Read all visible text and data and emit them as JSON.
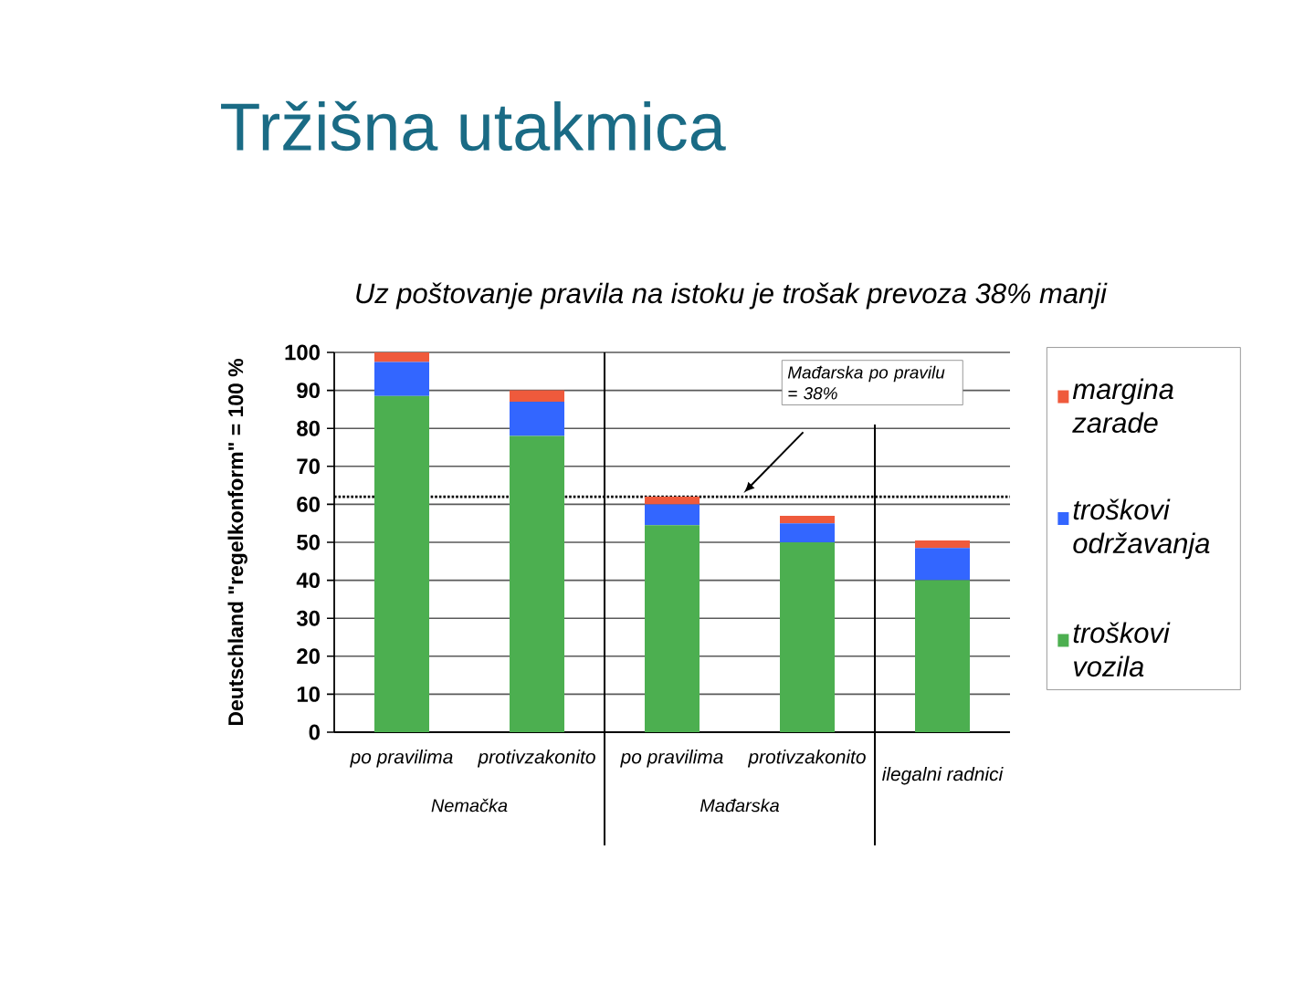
{
  "chart_data": {
    "type": "bar",
    "title": "Tržišna utakmica",
    "subtitle": "Uz poštovanje pravila na istoku je trošak prevoza 38% manji",
    "ylabel": "Deutschland \"regelkonform\" = 100 %",
    "categories": [
      "po pravilima",
      "protivzakonito",
      "po pravilima",
      "protivzakonito",
      "ilegalni radnici"
    ],
    "stacked": true,
    "series": [
      {
        "name": "troškovi vozila",
        "color": "#4caf50",
        "values": [
          88.5,
          78,
          54.5,
          50,
          40
        ]
      },
      {
        "name": "troškovi održavanja",
        "color": "#3366ff",
        "values": [
          9,
          9,
          5.5,
          5,
          8.5
        ]
      },
      {
        "name": "margina zarade",
        "color": "#ef5a3c",
        "values": [
          2.5,
          3,
          2,
          2,
          2
        ]
      }
    ],
    "ylim": [
      0,
      100
    ],
    "yticks": [
      0,
      10,
      20,
      30,
      40,
      50,
      60,
      70,
      80,
      90,
      100
    ],
    "grid": "y",
    "legend": "right",
    "ref_lines": [
      {
        "axis": "y",
        "value": 62,
        "line_style": "dotted",
        "color": "#000000"
      }
    ],
    "annotations": [
      "Nemačka",
      "Mađarska",
      "Mađarska po pravilu = 38%"
    ]
  }
}
